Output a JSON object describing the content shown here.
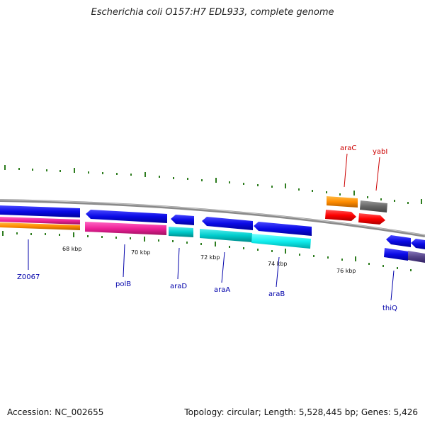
{
  "title": "Escherichia coli O157:H7 EDL933, complete genome",
  "footer": {
    "accession": "Accession: NC_002655",
    "topology": "Topology: circular; Length: 5,528,445 bp; Genes: 5,426"
  },
  "scale_labels": [
    "68 kbp",
    "70 kbp",
    "72 kbp",
    "74 kbp",
    "76 kbp"
  ],
  "genes": [
    {
      "name": "Z0067",
      "color": "#0000aa"
    },
    {
      "name": "polB",
      "color": "#0000aa"
    },
    {
      "name": "araD",
      "color": "#0000aa"
    },
    {
      "name": "araA",
      "color": "#0000aa"
    },
    {
      "name": "araB",
      "color": "#0000aa"
    },
    {
      "name": "araC",
      "color": "#cc0000"
    },
    {
      "name": "yabI",
      "color": "#cc0000"
    },
    {
      "name": "thiQ",
      "color": "#0000aa"
    }
  ],
  "colors": {
    "backbone": "#888888",
    "tick": "#2e7d1f",
    "cds_blue": "#0a0ae6",
    "pink": "#ee2299",
    "orange": "#ff8c00",
    "cyan": "#00cccc",
    "red": "#ff0000",
    "gray": "#666666",
    "slate": "#554488"
  }
}
